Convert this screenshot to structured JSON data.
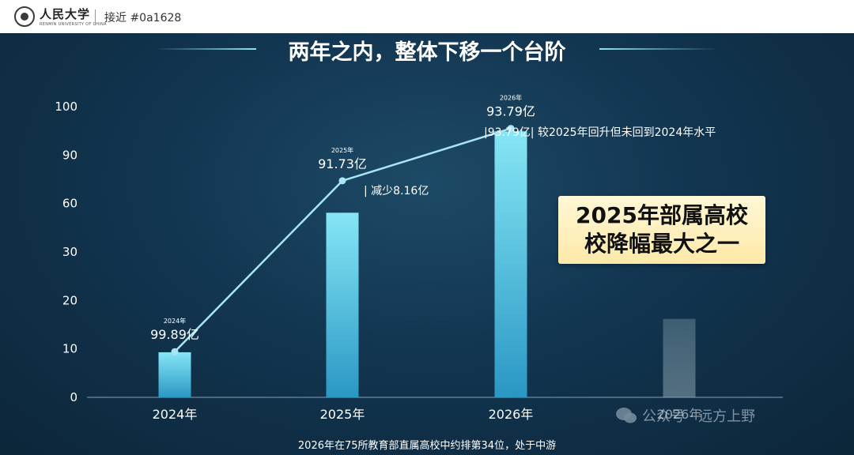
{
  "header": {
    "logo_name": "人民大学",
    "logo_sub": "RENMIN UNIVERSITY OF CHINA",
    "tag": "接近 #0a1628"
  },
  "title": "两年之内，整体下移一个台阶",
  "callout": {
    "line1": "2025年部属高校",
    "line2": "校降幅最大之一"
  },
  "footnote": "2026年在75所教育部直属高校中约排第34位，处于中游",
  "watermark": "公众号 · 远方上野",
  "colors": {
    "background": "#123550",
    "bar_top": "#7fe3f3",
    "bar_bottom": "#2a97c4",
    "line": "#a9e6f5",
    "callout_bg": "#fde9a8"
  },
  "chart_data": {
    "type": "bar",
    "categories": [
      "2024年",
      "2025年",
      "2026年",
      "2026年"
    ],
    "y_ticks": [
      "0",
      "10",
      "20",
      "30",
      "60",
      "90",
      "100"
    ],
    "bar_values": [
      15.5,
      63.5,
      91.5,
      27
    ],
    "bar_styles": [
      "solid",
      "solid",
      "solid",
      "faded"
    ],
    "line": {
      "points": [
        {
          "category": "2024年",
          "value": 99.89,
          "label": "99.89亿",
          "year": "2024年",
          "tick_position": 15.7
        },
        {
          "category": "2025年",
          "value": 91.73,
          "label": "91.73亿",
          "year": "2025年",
          "tick_position": 74.5
        },
        {
          "category": "2026年",
          "value": 93.79,
          "label": "93.79亿",
          "year": "2026年",
          "tick_position": 92.5
        }
      ]
    },
    "annotations": [
      {
        "category": "2025年",
        "text": "| 减少8.16亿"
      },
      {
        "category": "2026年",
        "text": "|93.79亿| 较2025年回升但未回到2024年水平"
      }
    ],
    "grid": false,
    "legend": "none"
  }
}
